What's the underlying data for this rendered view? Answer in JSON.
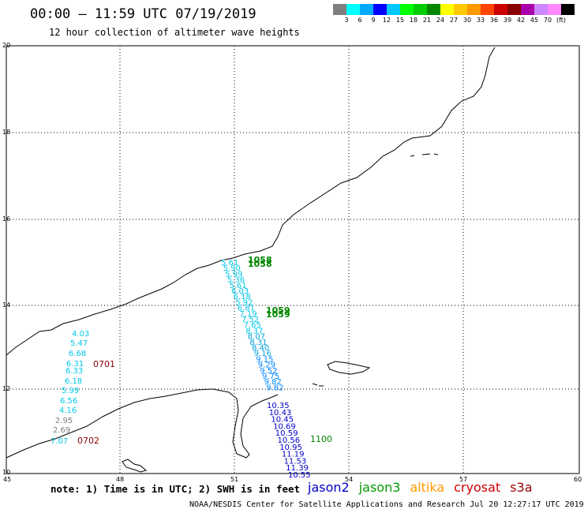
{
  "header": {
    "title": "00:00 — 11:59 UTC 07/19/2019",
    "subtitle": "12 hour collection of altimeter wave heights"
  },
  "legend": {
    "unit": "(ft)",
    "colors": [
      "#7f7f7f",
      "#00ffff",
      "#00aaff",
      "#0000ff",
      "#00c8ff",
      "#00ff00",
      "#00cc00",
      "#008800",
      "#ffff00",
      "#ffc800",
      "#ff9900",
      "#ff4400",
      "#cc0000",
      "#880000",
      "#aa00aa",
      "#cc88ff",
      "#ff88ff",
      "#000000"
    ],
    "labels": [
      "3",
      "6",
      "9",
      "12",
      "15",
      "18",
      "21",
      "24",
      "27",
      "30",
      "33",
      "36",
      "39",
      "42",
      "45",
      "70"
    ]
  },
  "axes": {
    "lon_ticks": [
      "45",
      "48",
      "51",
      "54",
      "57",
      "60"
    ],
    "lat_ticks": [
      "10",
      "12",
      "14",
      "16",
      "18",
      "20"
    ]
  },
  "tracks": {
    "cyan_upper": [
      "5.61",
      "5.90",
      "5.99",
      "5.36",
      "5.61",
      "6.03",
      "6.18",
      "5.92",
      "6.81",
      "7.19",
      "7.52",
      "7.65",
      "8.37",
      "8.07",
      "8.31",
      "8.40",
      "9.16",
      "9.15",
      "9.29",
      "9.52",
      "9.75",
      "9.82",
      "9.82"
    ],
    "blue_lower": [
      "10.35",
      "10.43",
      "10.45",
      "10.69",
      "10.59",
      "10.56",
      "10.95",
      "11.19",
      "11.53",
      "11.39",
      "10.55"
    ],
    "west": [
      "4.03",
      "5.47",
      "6.68",
      "6.31",
      "6.33",
      "6.18",
      "5.99",
      "6.56",
      "4.16",
      "2.95",
      "2.69",
      "7.07"
    ]
  },
  "time_labels": {
    "t0701": "0701",
    "t0702": "0702",
    "t1058a": "1058",
    "t1058b": "1058",
    "t1059a": "1059",
    "t1059b": "1059",
    "t1100": "1100"
  },
  "footer": {
    "note": "note: 1) Time is in UTC; 2) SWH is in feet",
    "satellites": [
      {
        "name": "jason2",
        "color": "#0000cc"
      },
      {
        "name": "jason3",
        "color": "#009900"
      },
      {
        "name": "altika",
        "color": "#ff9900"
      },
      {
        "name": "cryosat",
        "color": "#cc0000"
      },
      {
        "name": "s3a",
        "color": "#990000"
      }
    ],
    "credit": "NOAA/NESDIS Center for Satellite Applications and Research     Jul 20 12:27:17 UTC 2019"
  }
}
